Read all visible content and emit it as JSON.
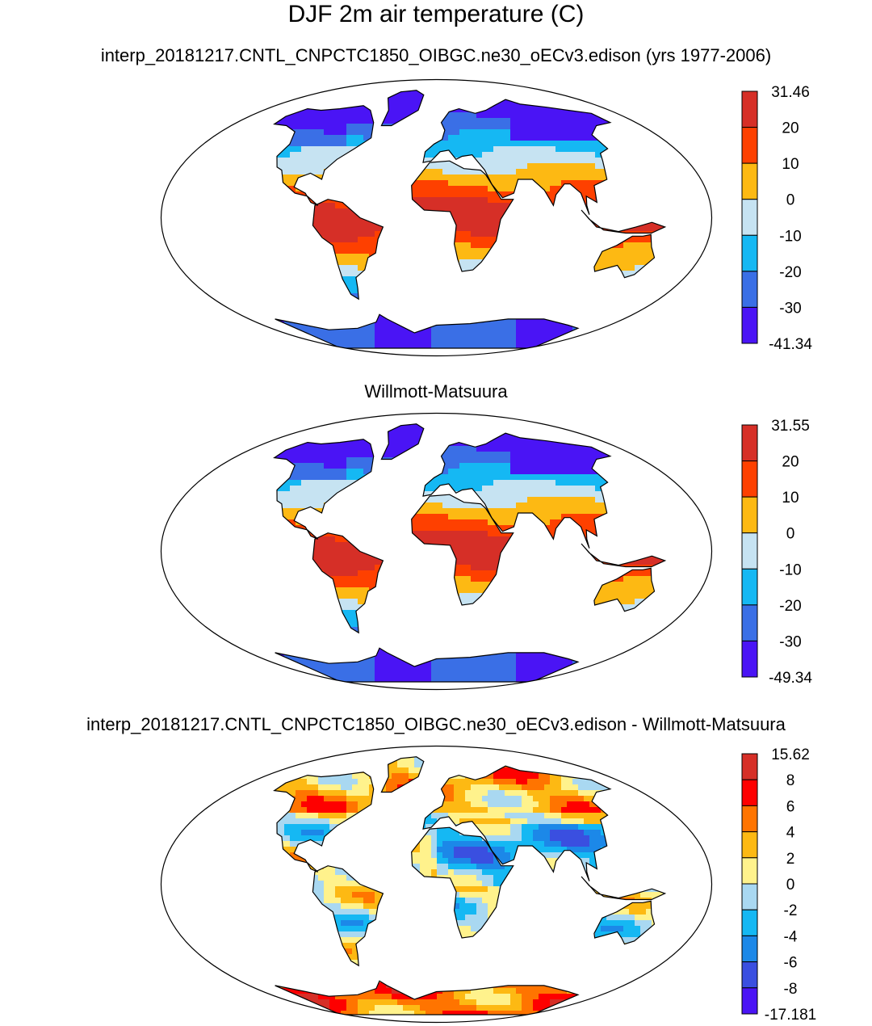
{
  "title": "DJF 2m air temperature (C)",
  "panels": [
    {
      "subtitle": "interp_20181217.CNTL_CNPCTC1850_OIBGC.ne30_oECv3.edison (yrs 1977-2006)",
      "colorbar": {
        "labels": [
          "31.46",
          "20",
          "10",
          "0",
          "-10",
          "-20",
          "-30",
          "-41.34"
        ],
        "colors": [
          "#d62f27",
          "#fe4000",
          "#fdb913",
          "#c6e3f2",
          "#15b8f3",
          "#3a6fe6",
          "#4a14f5"
        ]
      }
    },
    {
      "subtitle": "Willmott-Matsuura",
      "colorbar": {
        "labels": [
          "31.55",
          "20",
          "10",
          "0",
          "-10",
          "-20",
          "-30",
          "-49.34"
        ],
        "colors": [
          "#d62f27",
          "#fe4000",
          "#fdb913",
          "#c6e3f2",
          "#15b8f3",
          "#3a6fe6",
          "#4a14f5"
        ]
      }
    },
    {
      "subtitle": "interp_20181217.CNTL_CNPCTC1850_OIBGC.ne30_oECv3.edison - Willmott-Matsuura",
      "colorbar": {
        "labels": [
          "15.62",
          "8",
          "6",
          "4",
          "2",
          "0",
          "-2",
          "-4",
          "-6",
          "-8",
          "-17.181"
        ],
        "colors": [
          "#d62f27",
          "#fe0000",
          "#ff7400",
          "#fdb913",
          "#fff28c",
          "#a9d8f1",
          "#15b8f3",
          "#1c88e8",
          "#3a4fe0",
          "#4a14f5"
        ]
      }
    }
  ]
}
